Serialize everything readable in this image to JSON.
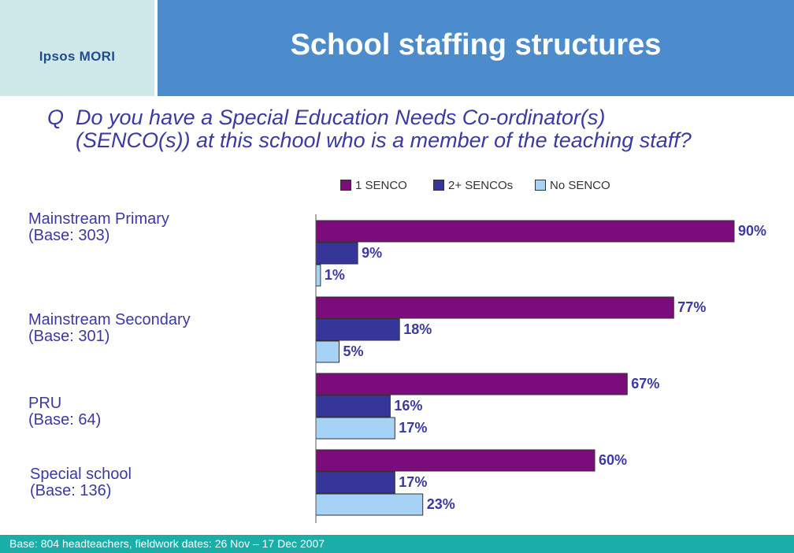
{
  "header": {
    "logo": "Ipsos MORI",
    "title": "School staffing structures"
  },
  "question": {
    "marker": "Q",
    "line1": "Do you have a Special Education Needs Co-ordinator(s)",
    "line2": "(SENCO(s)) at this school who is a member of the teaching staff?"
  },
  "footer": {
    "text": "Base: 804 headteachers, fieldwork dates: 26 Nov – 17 Dec 2007"
  },
  "colors": {
    "one_senco": "#7b0c7b",
    "two_plus": "#35359a",
    "no_senco": "#a6d3f5",
    "label": "#3a3aa0"
  },
  "chart_data": {
    "type": "bar",
    "orientation": "horizontal",
    "xlim": [
      0,
      100
    ],
    "grid": false,
    "legend_position": "top",
    "categories": [
      {
        "line1": "Mainstream Primary",
        "line2": "(Base: 303)"
      },
      {
        "line1": "Mainstream Secondary",
        "line2": "(Base: 301)"
      },
      {
        "line1": "PRU",
        "line2": "(Base: 64)"
      },
      {
        "line1": "Special school",
        "line2": "(Base: 136)"
      }
    ],
    "series": [
      {
        "name": "1 SENCO",
        "values": [
          90,
          77,
          67,
          60
        ],
        "labels": [
          "90%",
          "77%",
          "67%",
          "60%"
        ]
      },
      {
        "name": "2+ SENCOs",
        "values": [
          9,
          18,
          16,
          17
        ],
        "labels": [
          "9%",
          "18%",
          "16%",
          "17%"
        ]
      },
      {
        "name": "No SENCO",
        "values": [
          1,
          5,
          17,
          23
        ],
        "labels": [
          "1%",
          "5%",
          "17%",
          "23%"
        ]
      }
    ]
  }
}
